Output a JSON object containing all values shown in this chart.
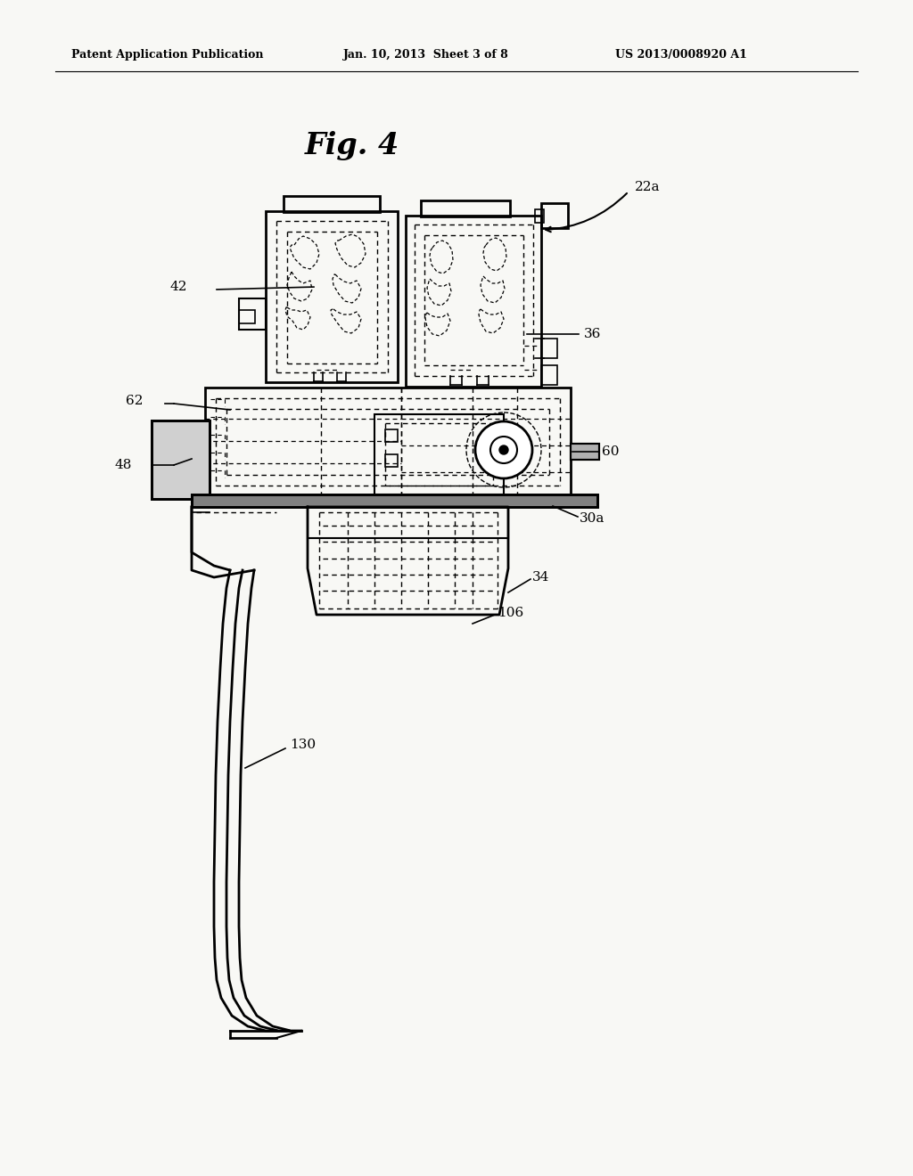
{
  "background_color": "#f8f8f5",
  "header_left": "Patent Application Publication",
  "header_center": "Jan. 10, 2013  Sheet 3 of 8",
  "header_right": "US 2013/0008920 A1",
  "fig_title": "Fig. 4"
}
